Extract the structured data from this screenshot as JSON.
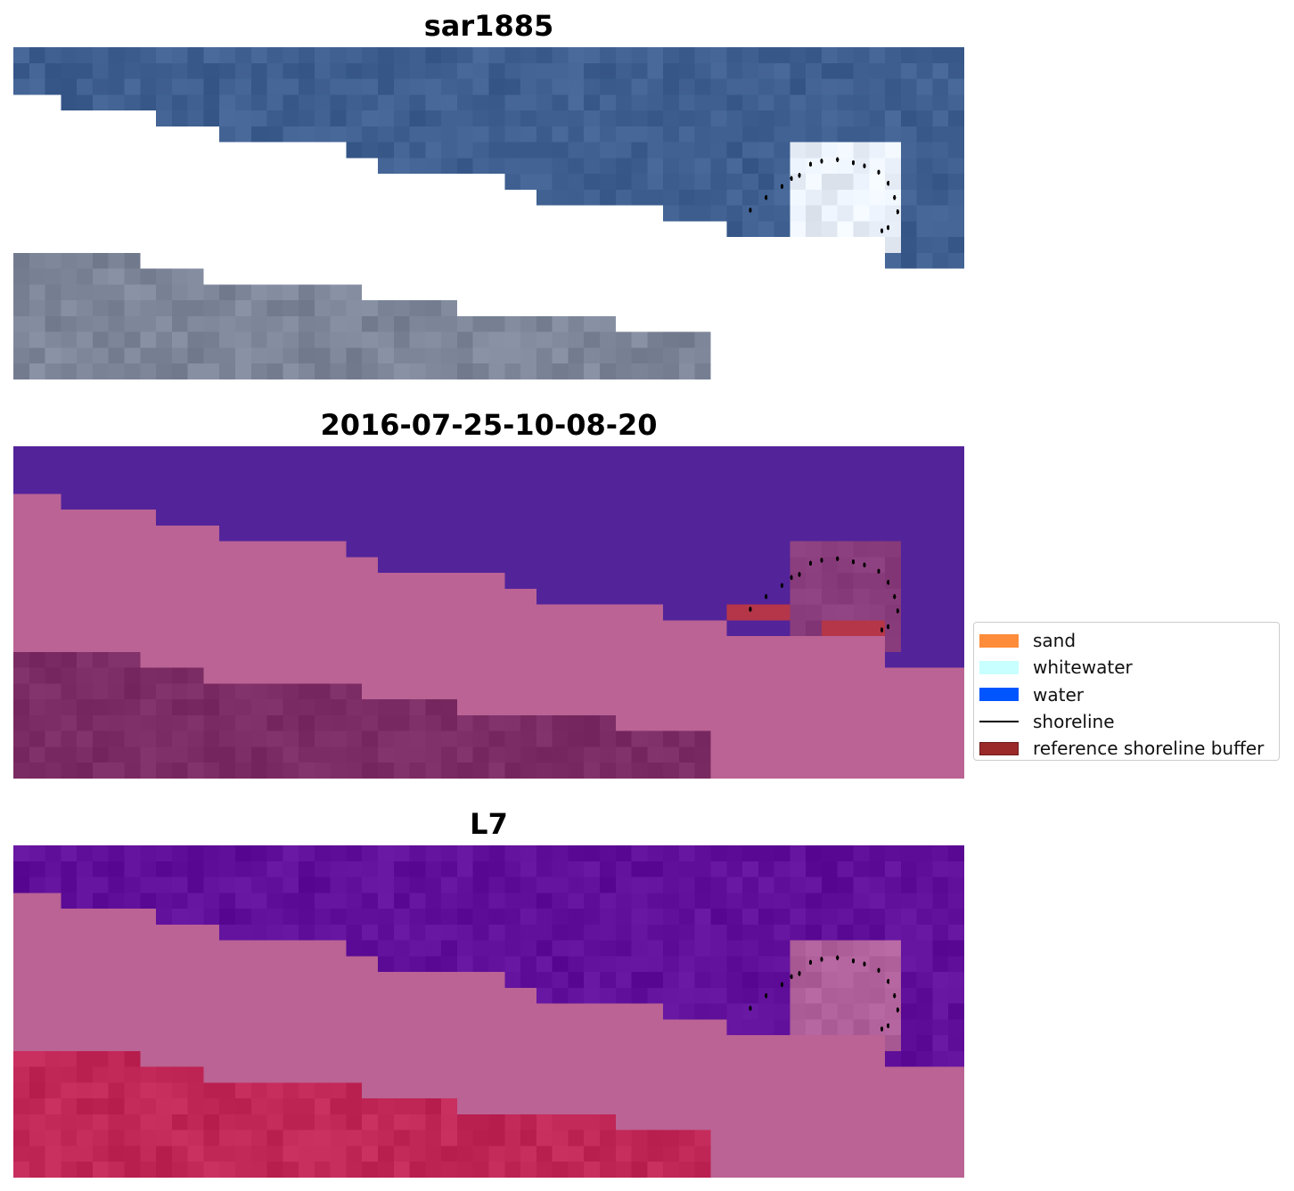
{
  "panels": [
    {
      "title": "sar1885",
      "palette": "rgb"
    },
    {
      "title": "2016-07-25-10-08-20",
      "palette": "classes"
    },
    {
      "title": "L7",
      "palette": "index"
    }
  ],
  "legend": {
    "items": [
      {
        "label": "sand",
        "kind": "patch",
        "color": "#ff8c3a",
        "edge": "#ff8c3a"
      },
      {
        "label": "whitewater",
        "kind": "patch",
        "color": "#c8ffff",
        "edge": "#c8ffff"
      },
      {
        "label": "water",
        "kind": "patch",
        "color": "#0055ff",
        "edge": "#0055ff"
      },
      {
        "label": "shoreline",
        "kind": "line",
        "color": "#000000"
      },
      {
        "label": "reference shoreline buffer",
        "kind": "patch",
        "color": "#9a2a2a",
        "edge": "#6e1a1a"
      }
    ]
  },
  "colors": {
    "background": "#ffffff",
    "rgb_water": "#3e5f90",
    "rgb_land": "#7d8699",
    "rgb_bright": "#e8eef8",
    "class_water": "#53239a",
    "class_sand": "#ba6394",
    "class_land": "#7c2c64",
    "class_buffer": "#b43648",
    "index_water": "#600f9a",
    "index_sand": "#ba6394",
    "index_land": "#c02656",
    "shoreline_points": "#000000"
  }
}
